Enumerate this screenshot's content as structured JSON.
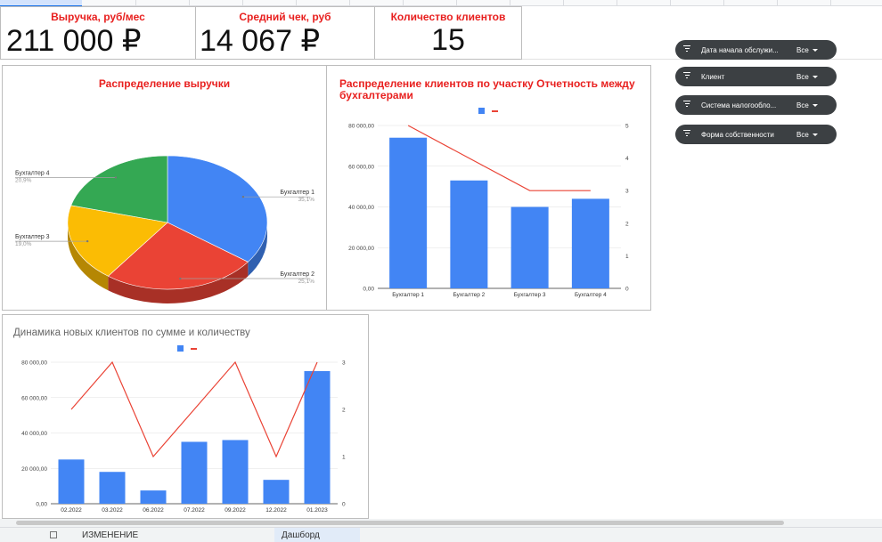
{
  "kpis": [
    {
      "title": "Выручка, руб/мес",
      "value": "211 000 ₽"
    },
    {
      "title": "Средний чек, руб",
      "value": "14 067 ₽"
    },
    {
      "title": "Количество клиентов",
      "value": "15"
    }
  ],
  "filters": [
    {
      "label": "Дата начала обслужи...",
      "value": "Все"
    },
    {
      "label": "Клиент",
      "value": "Все"
    },
    {
      "label": "Система налогообло...",
      "value": "Все"
    },
    {
      "label": "Форма собственности",
      "value": "Все"
    }
  ],
  "charts": {
    "pie": {
      "title": "Распределение выручки",
      "chart_data": {
        "type": "pie",
        "slices": [
          {
            "name": "Бухгалтер 1",
            "label": "35,1%",
            "value": 35.1,
            "color": "#4285f4"
          },
          {
            "name": "Бухгалтер 2",
            "label": "25,1%",
            "value": 25.1,
            "color": "#ea4335"
          },
          {
            "name": "Бухгалтер 3",
            "label": "19,0%",
            "value": 19.0,
            "color": "#fbbc04"
          },
          {
            "name": "Бухгалтер 4",
            "label": "20,9%",
            "value": 20.9,
            "color": "#34a853"
          }
        ]
      }
    },
    "combo1": {
      "title": "Распределение клиентов по участку Отчетность между бухгалтерами",
      "chart_data": {
        "type": "bar",
        "categories": [
          "Бухгалтер 1",
          "Бухгалтер 2",
          "Бухгалтер 3",
          "Бухгалтер 4"
        ],
        "series": [
          {
            "type": "bar",
            "values": [
              74000,
              53000,
              40000,
              44000
            ],
            "color": "#4285f4"
          },
          {
            "type": "line",
            "axis": "right",
            "values": [
              5,
              4,
              3,
              3
            ],
            "color": "#ea4335"
          }
        ],
        "ylim": [
          0,
          80000
        ],
        "ylim_right": [
          0,
          5
        ],
        "yticks": [
          "0,00",
          "20 000,00",
          "40 000,00",
          "60 000,00",
          "80 000,00"
        ],
        "yticks_right": [
          "0",
          "1",
          "2",
          "3",
          "4",
          "5"
        ]
      }
    },
    "combo2": {
      "title": "Динамика новых клиентов по сумме и количеству",
      "chart_data": {
        "type": "bar",
        "categories": [
          "02.2022",
          "03.2022",
          "06.2022",
          "07.2022",
          "09.2022",
          "12.2022",
          "01.2023"
        ],
        "series": [
          {
            "type": "bar",
            "values": [
              25000,
              18000,
              7500,
              35000,
              36000,
              13500,
              75000
            ],
            "color": "#4285f4"
          },
          {
            "type": "line",
            "axis": "right",
            "values": [
              2,
              3,
              1,
              2,
              3,
              1,
              3
            ],
            "color": "#ea4335"
          }
        ],
        "ylim": [
          0,
          80000
        ],
        "ylim_right": [
          0,
          3
        ],
        "yticks": [
          "0,00",
          "20 000,00",
          "40 000,00",
          "60 000,00",
          "80 000,00"
        ],
        "yticks_right": [
          "0",
          "1",
          "2",
          "3"
        ]
      }
    }
  },
  "tabs": {
    "sheet1": "ИЗМЕНЕНИЕ",
    "sheet2": "Дашборд"
  }
}
